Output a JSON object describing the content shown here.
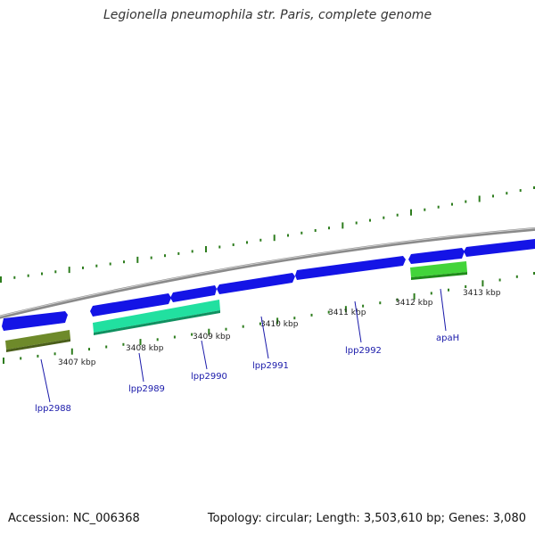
{
  "title": "Legionella pneumophila str. Paris, complete genome",
  "accession": "Accession: NC_006368",
  "stats": "Topology: circular; Length: 3,503,610 bp; Genes: 3,080",
  "colors": {
    "backbone": "#8a8a8a",
    "cds": "#1414e6",
    "tick": "#2e7d1e",
    "gene_label": "#1a1aaa",
    "light_green": "#43d43a",
    "teal": "#21e0a0",
    "olive": "#6e8a2a"
  },
  "kbp_labels": [
    "3407 kbp",
    "3408 kbp",
    "3409 kbp",
    "3410 kbp",
    "3411 kbp",
    "3412 kbp",
    "3413 kbp"
  ],
  "genes": [
    {
      "name": "lpp2988",
      "label": "lpp2988"
    },
    {
      "name": "lpp2989",
      "label": "lpp2989"
    },
    {
      "name": "lpp2990",
      "label": "lpp2990"
    },
    {
      "name": "lpp2991",
      "label": "lpp2991"
    },
    {
      "name": "lpp2992",
      "label": "lpp2992"
    },
    {
      "name": "apaH",
      "label": "apaH"
    }
  ]
}
